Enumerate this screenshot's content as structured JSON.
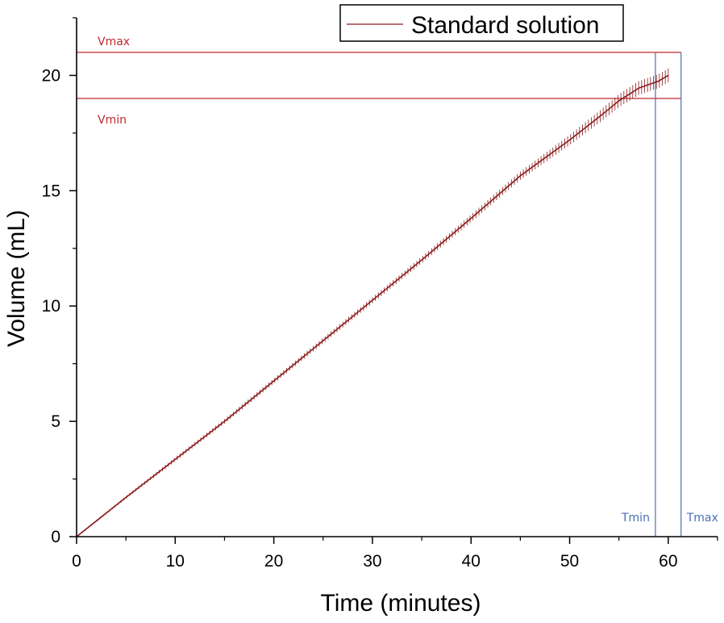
{
  "chart_data": {
    "type": "line",
    "title": "",
    "xlabel": "Time (minutes)",
    "ylabel": "Volume (mL)",
    "xlim": [
      0,
      65
    ],
    "ylim": [
      0,
      22.5
    ],
    "xticks": [
      0,
      10,
      20,
      30,
      40,
      50,
      60
    ],
    "yticks": [
      0,
      5,
      10,
      15,
      20
    ],
    "grid": false,
    "legend_position": "top-right",
    "series": [
      {
        "name": "Standard solution",
        "color": "#8b1a1a",
        "error_bars": true,
        "x": [
          0,
          5,
          10,
          15,
          20,
          25,
          30,
          35,
          40,
          45,
          50,
          53,
          55,
          57,
          58,
          59,
          60
        ],
        "y": [
          0,
          1.7,
          3.35,
          5.0,
          6.75,
          8.5,
          10.25,
          12.0,
          13.8,
          15.65,
          17.2,
          18.2,
          18.9,
          19.45,
          19.6,
          19.75,
          20.0
        ],
        "error": [
          0.03,
          0.06,
          0.09,
          0.1,
          0.11,
          0.12,
          0.13,
          0.14,
          0.16,
          0.18,
          0.22,
          0.26,
          0.28,
          0.3,
          0.3,
          0.3,
          0.3
        ]
      }
    ],
    "reference_lines": [
      {
        "label": "Vmax",
        "axis": "y",
        "value": 21.0,
        "color": "#c0282d"
      },
      {
        "label": "Vmin",
        "axis": "y",
        "value": 19.0,
        "color": "#c0282d"
      },
      {
        "label": "Tmin",
        "axis": "x",
        "value": 58.7,
        "color": "#4a6fb5"
      },
      {
        "label": "Tmax",
        "axis": "x",
        "value": 61.3,
        "color": "#4a6fb5"
      }
    ]
  }
}
